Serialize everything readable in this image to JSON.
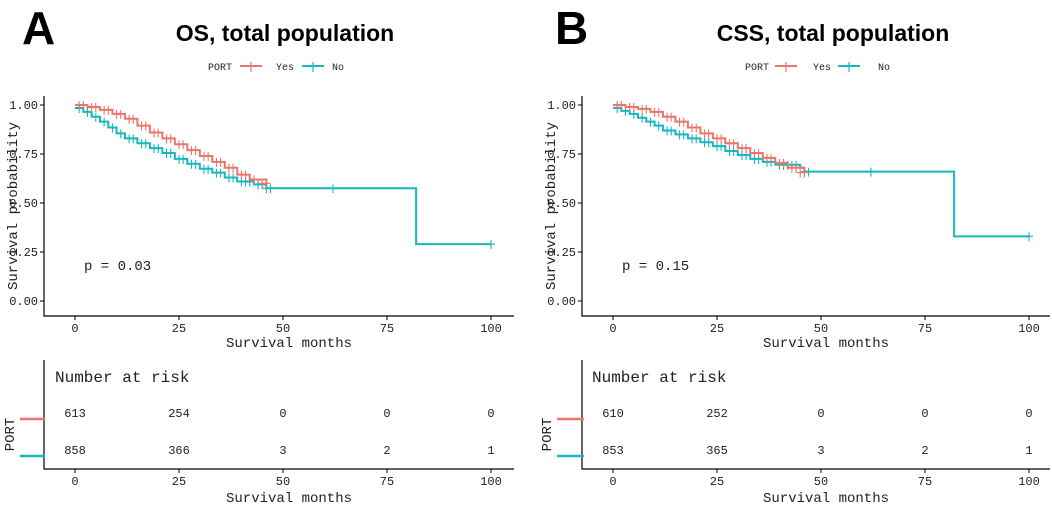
{
  "chart_data": [
    {
      "type": "line",
      "panel_label": "A",
      "title": "OS, total population",
      "xlabel": "Survival months",
      "ylabel": "Survival probability",
      "xlim": [
        0,
        100
      ],
      "ylim": [
        0,
        1
      ],
      "x_ticks": [
        0,
        25,
        50,
        75,
        100
      ],
      "y_ticks": [
        "0.00",
        "0.25",
        "0.50",
        "0.75",
        "1.00"
      ],
      "legend": {
        "title": "PORT",
        "placement": "top",
        "entries": [
          "Yes",
          "No"
        ]
      },
      "pvalue": "p = 0.03",
      "series": [
        {
          "name": "Yes",
          "color": "#e8766c",
          "steps": [
            [
              0,
              1.0
            ],
            [
              3,
              0.99
            ],
            [
              6,
              0.975
            ],
            [
              9,
              0.955
            ],
            [
              12,
              0.93
            ],
            [
              15,
              0.895
            ],
            [
              18,
              0.86
            ],
            [
              21,
              0.83
            ],
            [
              24,
              0.8
            ],
            [
              27,
              0.77
            ],
            [
              30,
              0.74
            ],
            [
              33,
              0.71
            ],
            [
              36,
              0.68
            ],
            [
              39,
              0.645
            ],
            [
              42,
              0.62
            ],
            [
              46,
              0.6
            ]
          ],
          "censor": [
            [
              1,
              1.0
            ],
            [
              2,
              1.0
            ],
            [
              4,
              0.99
            ],
            [
              5,
              0.99
            ],
            [
              7,
              0.975
            ],
            [
              8,
              0.975
            ],
            [
              10,
              0.955
            ],
            [
              11,
              0.955
            ],
            [
              13,
              0.93
            ],
            [
              14,
              0.93
            ],
            [
              16,
              0.895
            ],
            [
              17,
              0.895
            ],
            [
              19,
              0.86
            ],
            [
              20,
              0.86
            ],
            [
              22,
              0.83
            ],
            [
              23,
              0.83
            ],
            [
              25,
              0.8
            ],
            [
              26,
              0.8
            ],
            [
              28,
              0.77
            ],
            [
              29,
              0.77
            ],
            [
              31,
              0.74
            ],
            [
              32,
              0.74
            ],
            [
              34,
              0.71
            ],
            [
              35,
              0.71
            ],
            [
              37,
              0.68
            ],
            [
              38,
              0.68
            ],
            [
              40,
              0.645
            ],
            [
              41,
              0.645
            ],
            [
              43,
              0.62
            ],
            [
              45,
              0.6
            ],
            [
              46,
              0.6
            ]
          ]
        },
        {
          "name": "No",
          "color": "#17b7bf",
          "steps": [
            [
              0,
              0.985
            ],
            [
              2,
              0.965
            ],
            [
              4,
              0.94
            ],
            [
              6,
              0.915
            ],
            [
              8,
              0.885
            ],
            [
              10,
              0.855
            ],
            [
              12,
              0.83
            ],
            [
              15,
              0.805
            ],
            [
              18,
              0.78
            ],
            [
              21,
              0.755
            ],
            [
              24,
              0.725
            ],
            [
              27,
              0.7
            ],
            [
              30,
              0.675
            ],
            [
              33,
              0.655
            ],
            [
              36,
              0.63
            ],
            [
              39,
              0.61
            ],
            [
              43,
              0.595
            ],
            [
              46,
              0.575
            ],
            [
              82,
              0.29
            ],
            [
              100,
              0.29
            ]
          ],
          "censor": [
            [
              1,
              0.985
            ],
            [
              3,
              0.965
            ],
            [
              5,
              0.94
            ],
            [
              7,
              0.915
            ],
            [
              9,
              0.885
            ],
            [
              11,
              0.855
            ],
            [
              13,
              0.83
            ],
            [
              14,
              0.83
            ],
            [
              16,
              0.805
            ],
            [
              17,
              0.805
            ],
            [
              19,
              0.78
            ],
            [
              20,
              0.78
            ],
            [
              22,
              0.755
            ],
            [
              23,
              0.755
            ],
            [
              25,
              0.725
            ],
            [
              26,
              0.725
            ],
            [
              28,
              0.7
            ],
            [
              29,
              0.7
            ],
            [
              31,
              0.675
            ],
            [
              32,
              0.675
            ],
            [
              34,
              0.655
            ],
            [
              35,
              0.655
            ],
            [
              37,
              0.63
            ],
            [
              38,
              0.63
            ],
            [
              40,
              0.61
            ],
            [
              41,
              0.61
            ],
            [
              42,
              0.61
            ],
            [
              44,
              0.595
            ],
            [
              45,
              0.595
            ],
            [
              46,
              0.575
            ],
            [
              47,
              0.575
            ],
            [
              62,
              0.575
            ],
            [
              100,
              0.29
            ]
          ]
        }
      ],
      "risk_table": {
        "title": "Number at risk",
        "ylabel": "PORT",
        "xlabel": "Survival months",
        "rows": [
          {
            "name": "Yes",
            "color": "#e8766c",
            "values": [
              "613",
              "254",
              "0",
              "0",
              "0"
            ]
          },
          {
            "name": "No",
            "color": "#17b7bf",
            "values": [
              "858",
              "366",
              "3",
              "2",
              "1"
            ]
          }
        ]
      }
    },
    {
      "type": "line",
      "panel_label": "B",
      "title": "CSS, total population",
      "xlabel": "Survival months",
      "ylabel": "Survival probability",
      "xlim": [
        0,
        100
      ],
      "ylim": [
        0,
        1
      ],
      "x_ticks": [
        0,
        25,
        50,
        75,
        100
      ],
      "y_ticks": [
        "0.00",
        "0.25",
        "0.50",
        "0.75",
        "1.00"
      ],
      "legend": {
        "title": "PORT",
        "placement": "top",
        "entries": [
          "Yes",
          "No"
        ]
      },
      "pvalue": "p = 0.15",
      "series": [
        {
          "name": "Yes",
          "color": "#e8766c",
          "steps": [
            [
              0,
              1.0
            ],
            [
              3,
              0.99
            ],
            [
              6,
              0.98
            ],
            [
              9,
              0.965
            ],
            [
              12,
              0.94
            ],
            [
              15,
              0.915
            ],
            [
              18,
              0.885
            ],
            [
              21,
              0.855
            ],
            [
              24,
              0.83
            ],
            [
              27,
              0.805
            ],
            [
              30,
              0.78
            ],
            [
              33,
              0.755
            ],
            [
              36,
              0.73
            ],
            [
              39,
              0.705
            ],
            [
              42,
              0.68
            ],
            [
              46,
              0.655
            ]
          ],
          "censor": [
            [
              1,
              1.0
            ],
            [
              2,
              1.0
            ],
            [
              4,
              0.99
            ],
            [
              5,
              0.99
            ],
            [
              7,
              0.98
            ],
            [
              8,
              0.98
            ],
            [
              10,
              0.965
            ],
            [
              11,
              0.965
            ],
            [
              13,
              0.94
            ],
            [
              14,
              0.94
            ],
            [
              16,
              0.915
            ],
            [
              17,
              0.915
            ],
            [
              19,
              0.885
            ],
            [
              20,
              0.885
            ],
            [
              22,
              0.855
            ],
            [
              23,
              0.855
            ],
            [
              25,
              0.83
            ],
            [
              26,
              0.83
            ],
            [
              28,
              0.805
            ],
            [
              29,
              0.805
            ],
            [
              31,
              0.78
            ],
            [
              32,
              0.78
            ],
            [
              34,
              0.755
            ],
            [
              35,
              0.755
            ],
            [
              37,
              0.73
            ],
            [
              38,
              0.73
            ],
            [
              40,
              0.705
            ],
            [
              41,
              0.705
            ],
            [
              43,
              0.68
            ],
            [
              44,
              0.68
            ],
            [
              45,
              0.655
            ],
            [
              46,
              0.655
            ]
          ]
        },
        {
          "name": "No",
          "color": "#17b7bf",
          "steps": [
            [
              0,
              0.985
            ],
            [
              2,
              0.97
            ],
            [
              4,
              0.955
            ],
            [
              6,
              0.935
            ],
            [
              8,
              0.915
            ],
            [
              10,
              0.895
            ],
            [
              12,
              0.87
            ],
            [
              15,
              0.85
            ],
            [
              18,
              0.83
            ],
            [
              21,
              0.81
            ],
            [
              24,
              0.79
            ],
            [
              27,
              0.765
            ],
            [
              30,
              0.745
            ],
            [
              33,
              0.725
            ],
            [
              36,
              0.71
            ],
            [
              39,
              0.695
            ],
            [
              45,
              0.68
            ],
            [
              46,
              0.66
            ],
            [
              82,
              0.33
            ],
            [
              100,
              0.33
            ]
          ],
          "censor": [
            [
              1,
              0.985
            ],
            [
              3,
              0.97
            ],
            [
              5,
              0.955
            ],
            [
              7,
              0.935
            ],
            [
              9,
              0.915
            ],
            [
              11,
              0.895
            ],
            [
              13,
              0.87
            ],
            [
              14,
              0.87
            ],
            [
              16,
              0.85
            ],
            [
              17,
              0.85
            ],
            [
              19,
              0.83
            ],
            [
              20,
              0.83
            ],
            [
              22,
              0.81
            ],
            [
              23,
              0.81
            ],
            [
              25,
              0.79
            ],
            [
              26,
              0.79
            ],
            [
              28,
              0.765
            ],
            [
              29,
              0.765
            ],
            [
              31,
              0.745
            ],
            [
              32,
              0.745
            ],
            [
              34,
              0.725
            ],
            [
              35,
              0.725
            ],
            [
              37,
              0.71
            ],
            [
              38,
              0.71
            ],
            [
              40,
              0.695
            ],
            [
              41,
              0.695
            ],
            [
              42,
              0.695
            ],
            [
              43,
              0.695
            ],
            [
              44,
              0.695
            ],
            [
              46,
              0.66
            ],
            [
              47,
              0.66
            ],
            [
              62,
              0.66
            ],
            [
              100,
              0.33
            ]
          ]
        }
      ],
      "risk_table": {
        "title": "Number at risk",
        "ylabel": "PORT",
        "xlabel": "Survival months",
        "rows": [
          {
            "name": "Yes",
            "color": "#e8766c",
            "values": [
              "610",
              "252",
              "0",
              "0",
              "0"
            ]
          },
          {
            "name": "No",
            "color": "#17b7bf",
            "values": [
              "853",
              "365",
              "3",
              "2",
              "1"
            ]
          }
        ]
      }
    }
  ]
}
